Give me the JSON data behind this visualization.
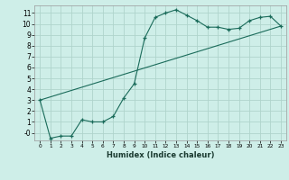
{
  "xlabel": "Humidex (Indice chaleur)",
  "ylabel": "",
  "background_color": "#ceeee8",
  "grid_color": "#b0d4cc",
  "line_color": "#1a6b5a",
  "xlim": [
    -0.5,
    23.5
  ],
  "ylim": [
    -0.7,
    11.7
  ],
  "xticks": [
    0,
    1,
    2,
    3,
    4,
    5,
    6,
    7,
    8,
    9,
    10,
    11,
    12,
    13,
    14,
    15,
    16,
    17,
    18,
    19,
    20,
    21,
    22,
    23
  ],
  "yticks": [
    0,
    1,
    2,
    3,
    4,
    5,
    6,
    7,
    8,
    9,
    10,
    11
  ],
  "ytick_labels": [
    "-0",
    "1",
    "2",
    "3",
    "4",
    "5",
    "6",
    "7",
    "8",
    "9",
    "10",
    "11"
  ],
  "curve_x": [
    0,
    1,
    2,
    3,
    4,
    5,
    6,
    7,
    8,
    9,
    10,
    11,
    12,
    13,
    14,
    15,
    16,
    17,
    18,
    19,
    20,
    21,
    22,
    23
  ],
  "curve_y": [
    3.0,
    -0.5,
    -0.3,
    -0.3,
    1.2,
    1.0,
    1.0,
    1.5,
    3.2,
    4.5,
    8.7,
    10.6,
    11.0,
    11.3,
    10.8,
    10.3,
    9.7,
    9.7,
    9.5,
    9.6,
    10.3,
    10.6,
    10.7,
    9.8
  ],
  "line2_x": [
    0,
    23
  ],
  "line2_y": [
    3.0,
    9.8
  ]
}
